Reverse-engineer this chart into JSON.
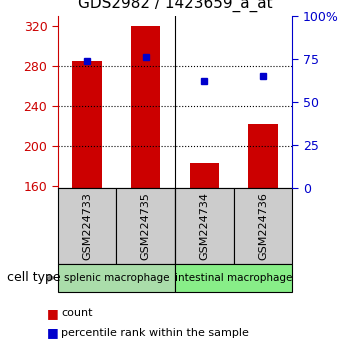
{
  "title": "GDS2982 / 1423659_a_at",
  "samples": [
    "GSM224733",
    "GSM224735",
    "GSM224734",
    "GSM224736"
  ],
  "bar_values": [
    285,
    320,
    183,
    222
  ],
  "pct_values": [
    74,
    76,
    62,
    65
  ],
  "bar_bottom": 158,
  "ylim_left": [
    158,
    330
  ],
  "ylim_right": [
    0,
    100
  ],
  "yticks_left": [
    160,
    200,
    240,
    280,
    320
  ],
  "yticks_right": [
    0,
    25,
    50,
    75,
    100
  ],
  "ytick_labels_right": [
    "0",
    "25",
    "50",
    "75",
    "100%"
  ],
  "bar_color": "#cc0000",
  "pct_color": "#0000cc",
  "group1_label": "splenic macrophage",
  "group2_label": "intestinal macrophage",
  "group1_color": "#aaddaa",
  "group2_color": "#88ee88",
  "sample_box_color": "#cccccc",
  "cell_type_label": "cell type",
  "legend_count": "count",
  "legend_pct": "percentile rank within the sample",
  "left_tick_color": "#cc0000",
  "right_tick_color": "#0000cc",
  "grid_yticks": [
    200,
    240,
    280
  ],
  "bar_width": 0.5,
  "figsize": [
    3.5,
    3.54
  ],
  "dpi": 100
}
